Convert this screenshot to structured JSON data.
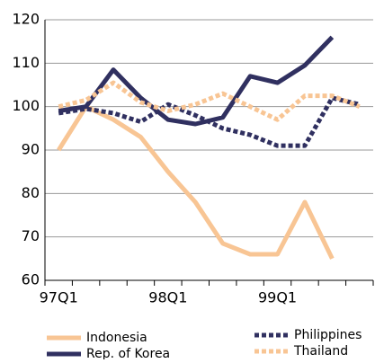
{
  "chart_data": {
    "type": "line",
    "categories": [
      "97Q1",
      null,
      null,
      null,
      "98Q1",
      null,
      null,
      null,
      "99Q1",
      null,
      null,
      null
    ],
    "series": [
      {
        "name": "Indonesia",
        "color": "#f8c594",
        "dash": false,
        "values": [
          90,
          100,
          97,
          93,
          85,
          78,
          68.5,
          66,
          66,
          78,
          65,
          null
        ]
      },
      {
        "name": "Rep. of Korea",
        "color": "#303060",
        "dash": false,
        "values": [
          99,
          100,
          108.5,
          102,
          97,
          96,
          97.5,
          107,
          105.5,
          109.5,
          116,
          null
        ]
      },
      {
        "name": "Philippines",
        "color": "#303060",
        "dash": true,
        "values": [
          98.5,
          99.5,
          98.5,
          96.5,
          100.5,
          98,
          95,
          93.5,
          91,
          91,
          102,
          100.5
        ]
      },
      {
        "name": "Thailand",
        "color": "#f8c594",
        "dash": true,
        "values": [
          100,
          101.5,
          105.5,
          101,
          99,
          100.5,
          103,
          100,
          97,
          102.5,
          102.5,
          100
        ]
      }
    ],
    "ylim": [
      60,
      120
    ],
    "yticks": [
      60,
      70,
      80,
      90,
      100,
      110,
      120
    ],
    "grid": true
  }
}
